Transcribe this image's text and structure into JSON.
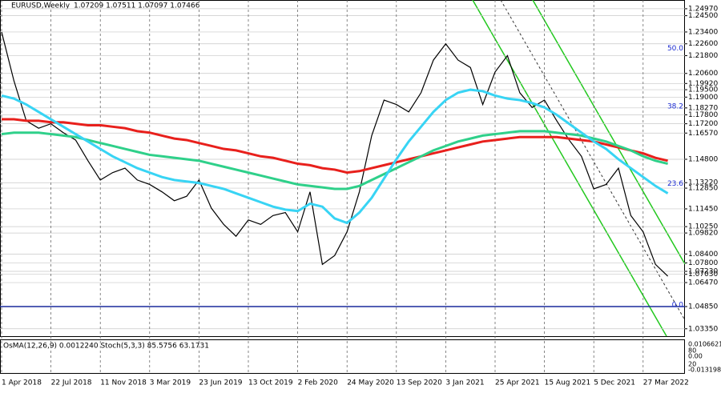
{
  "chart_data": {
    "type": "line",
    "title": "EURUSD,Weekly",
    "subtitle": "1.07209 1.07511 1.07097 1.07466",
    "categories": [
      "1 Apr 2018",
      null,
      null,
      null,
      "22 Jul 2018",
      null,
      null,
      null,
      "11 Nov 2018",
      null,
      null,
      null,
      "3 Mar 2019",
      null,
      null,
      null,
      "23 Jun 2019",
      null,
      null,
      null,
      "13 Oct 2019",
      null,
      null,
      null,
      "2 Feb 2020",
      null,
      null,
      null,
      "24 May 2020",
      null,
      null,
      null,
      "13 Sep 2020",
      null,
      null,
      null,
      "3 Jan 2021",
      null,
      null,
      null,
      "25 Apr 2021",
      null,
      null,
      null,
      "15 Aug 2021",
      null,
      null,
      null,
      "5 Dec 2021",
      null,
      null,
      null,
      "27 Mar 2022",
      null,
      null
    ],
    "series": [
      {
        "color": "#000000",
        "values": [
          1.234,
          1.201,
          1.174,
          1.169,
          1.172,
          1.166,
          1.161,
          1.147,
          1.134,
          1.139,
          1.142,
          1.134,
          1.131,
          1.126,
          1.12,
          1.123,
          1.134,
          1.115,
          1.104,
          1.096,
          1.107,
          1.104,
          1.11,
          1.112,
          1.099,
          1.126,
          1.077,
          1.083,
          1.099,
          1.126,
          1.164,
          1.188,
          1.185,
          1.18,
          1.193,
          1.215,
          1.226,
          1.215,
          1.21,
          1.185,
          1.207,
          1.218,
          1.193,
          1.183,
          1.188,
          1.174,
          1.161,
          1.15,
          1.128,
          1.131,
          1.142,
          1.11,
          1.099,
          1.077,
          1.069
        ]
      },
      {
        "color": "#e8201c",
        "values": [
          1.175,
          1.175,
          1.174,
          1.174,
          1.173,
          1.173,
          1.172,
          1.171,
          1.171,
          1.17,
          1.169,
          1.167,
          1.166,
          1.164,
          1.162,
          1.161,
          1.159,
          1.157,
          1.155,
          1.154,
          1.152,
          1.15,
          1.149,
          1.147,
          1.145,
          1.144,
          1.142,
          1.141,
          1.139,
          1.14,
          1.142,
          1.144,
          1.146,
          1.148,
          1.15,
          1.152,
          1.154,
          1.156,
          1.158,
          1.16,
          1.161,
          1.162,
          1.163,
          1.163,
          1.163,
          1.163,
          1.162,
          1.161,
          1.16,
          1.158,
          1.156,
          1.154,
          1.152,
          1.149,
          1.147
        ]
      },
      {
        "color": "#2fd08a",
        "values": [
          1.165,
          1.166,
          1.166,
          1.166,
          1.165,
          1.164,
          1.163,
          1.161,
          1.159,
          1.157,
          1.155,
          1.153,
          1.151,
          1.15,
          1.149,
          1.148,
          1.147,
          1.145,
          1.143,
          1.141,
          1.139,
          1.137,
          1.135,
          1.133,
          1.131,
          1.13,
          1.129,
          1.128,
          1.128,
          1.13,
          1.134,
          1.138,
          1.142,
          1.146,
          1.15,
          1.154,
          1.157,
          1.16,
          1.162,
          1.164,
          1.165,
          1.166,
          1.167,
          1.167,
          1.167,
          1.166,
          1.165,
          1.164,
          1.162,
          1.16,
          1.157,
          1.154,
          1.15,
          1.147,
          1.145
        ]
      },
      {
        "color": "#38d4f4",
        "values": [
          1.191,
          1.189,
          1.185,
          1.18,
          1.175,
          1.17,
          1.165,
          1.16,
          1.155,
          1.15,
          1.146,
          1.142,
          1.139,
          1.136,
          1.134,
          1.133,
          1.132,
          1.13,
          1.128,
          1.125,
          1.122,
          1.119,
          1.116,
          1.114,
          1.113,
          1.118,
          1.116,
          1.108,
          1.105,
          1.112,
          1.122,
          1.135,
          1.148,
          1.16,
          1.17,
          1.18,
          1.188,
          1.193,
          1.195,
          1.194,
          1.191,
          1.189,
          1.188,
          1.186,
          1.183,
          1.178,
          1.172,
          1.166,
          1.16,
          1.155,
          1.148,
          1.142,
          1.136,
          1.13,
          1.125
        ]
      }
    ],
    "ylim": [
      1.0285,
      1.2556
    ],
    "yticks": [
      {
        "value": 1.2497,
        "label": "1.24970"
      },
      {
        "value": 1.245,
        "label": "1.24500"
      },
      {
        "value": 1.234,
        "label": "1.23400"
      },
      {
        "value": 1.226,
        "label": "1.22600"
      },
      {
        "value": 1.218,
        "label": "1.21800"
      },
      {
        "value": 1.206,
        "label": "1.20600"
      },
      {
        "value": 1.1992,
        "label": "1.19920"
      },
      {
        "value": 1.195,
        "label": "1.19500"
      },
      {
        "value": 1.19,
        "label": "1.19000"
      },
      {
        "value": 1.1827,
        "label": "1.18270"
      },
      {
        "value": 1.178,
        "label": "1.17800"
      },
      {
        "value": 1.172,
        "label": "1.17200"
      },
      {
        "value": 1.1657,
        "label": "1.16570"
      },
      {
        "value": 1.148,
        "label": "1.14800"
      },
      {
        "value": 1.1322,
        "label": "1.13220"
      },
      {
        "value": 1.1285,
        "label": "1.12850"
      },
      {
        "value": 1.1145,
        "label": "1.11450"
      },
      {
        "value": 1.1025,
        "label": "1.10250"
      },
      {
        "value": 1.0982,
        "label": "1.09820"
      },
      {
        "value": 1.084,
        "label": "1.08400"
      },
      {
        "value": 1.078,
        "label": "1.07800"
      },
      {
        "value": 1.0723,
        "label": "1.07230"
      },
      {
        "value": 1.0703,
        "label": "1.07030"
      },
      {
        "value": 1.0647,
        "label": "1.06470"
      },
      {
        "value": 1.0485,
        "label": "1.04850"
      },
      {
        "value": 1.0335,
        "label": "1.03350"
      }
    ],
    "support_line": {
      "value": 1.0485,
      "color": "#1a2a9c"
    },
    "fib_labels": [
      {
        "value": 1.223,
        "label": "50.0"
      },
      {
        "value": 1.1836,
        "label": "38.2"
      },
      {
        "value": 1.1316,
        "label": "23.6"
      },
      {
        "value": 1.0496,
        "label": "0.0"
      }
    ],
    "indicator": {
      "title": "OsMA(12,26,9) 0.0012240  Stoch(5,3,3) 85.5756 63.1731",
      "scale_labels": [
        "0.0106621",
        "80",
        "0.00",
        "20",
        "-0.013198"
      ]
    },
    "grid": true
  }
}
